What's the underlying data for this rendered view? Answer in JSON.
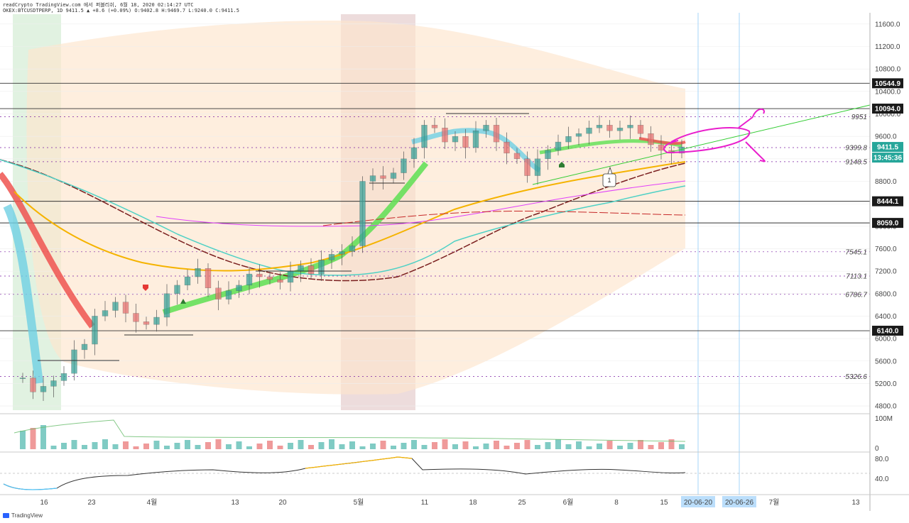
{
  "header": {
    "line1": "readCrypto TradingView.com 에서 퍼블리쉬, 6월 18, 2020 02:14:27 UTC",
    "line2": "OKEX:BTCUSDTPERP, 1D 9411.5 ▲ +8.6 (+0.09%) O:9402.8 H:9469.7 L:9240.0 C:9411.5"
  },
  "footer": {
    "brand": "TradingView"
  },
  "colors": {
    "up": "#3aa39a",
    "down": "#e57373",
    "price_tag": "#26a69a",
    "ribbon_green": "#66e05a",
    "ribbon_red": "#ef5350",
    "ribbon_blue": "#6fd0e3",
    "ma_orange": "#f5b300",
    "ma_cyan": "#4fd1c5",
    "ma_magenta": "#e040fb",
    "ma_maroon": "#7a1f1f",
    "trend_green": "#33cc33",
    "annotation_magenta": "#e91ecc",
    "band_fill": "#fde5cc",
    "shade_green": "#d9efd9",
    "shade_brown": "#e8d3d3"
  },
  "chart_data": [
    {
      "type": "candlestick",
      "symbol": "OKEX:BTCUSDTPERP",
      "interval": "1D",
      "last": 9411.5,
      "change": 8.6,
      "change_pct": "+0.09%",
      "ohlc_last": {
        "open": 9402.8,
        "high": 9469.7,
        "low": 9240.0,
        "close": 9411.5
      },
      "ylim": [
        4700,
        11800
      ],
      "y_ticks": [
        "11600.0",
        "11200.0",
        "10800.0",
        "10400.0",
        "10000.0",
        "9600.0",
        "9200.0",
        "8800.0",
        "8400.0",
        "8000.0",
        "7600.0",
        "7200.0",
        "6800.0",
        "6400.0",
        "6000.0",
        "5600.0",
        "5200.0",
        "4800.0"
      ],
      "x_ticks": [
        "16",
        "23",
        "4월",
        "13",
        "20",
        "5월",
        "11",
        "18",
        "25",
        "6월",
        "8",
        "15",
        "20-06-20",
        "20-06-26",
        "7월",
        "13"
      ],
      "x_highlight_ticks": [
        "20-06-20",
        "20-06-26"
      ],
      "horizontal_levels": [
        {
          "label": "10544.9",
          "value": 10544.9,
          "boxed": true
        },
        {
          "label": "10094.0",
          "value": 10094.0,
          "boxed": true
        },
        {
          "label": "8444.1",
          "value": 8444.1,
          "boxed": true
        },
        {
          "label": "8059.0",
          "value": 8059.0,
          "boxed": true
        },
        {
          "label": "6140.0",
          "value": 6140.0,
          "boxed": true
        }
      ],
      "dotted_levels": [
        {
          "label": "9951",
          "value": 9951
        },
        {
          "label": "9399.8",
          "value": 9399.8
        },
        {
          "label": "9148.5",
          "value": 9148.5
        },
        {
          "label": "7545.1",
          "value": 7545.1
        },
        {
          "label": "7113.1",
          "value": 7113.1
        },
        {
          "label": "6786.7",
          "value": 6786.7
        },
        {
          "label": "5326.6",
          "value": 5326.6
        }
      ],
      "price_tag": "9411.5",
      "countdown_tag": "13:45:36",
      "annotation_label": "1",
      "closes": [
        5300,
        5050,
        5150,
        5250,
        5380,
        5800,
        5900,
        6400,
        6500,
        6650,
        6450,
        6300,
        6250,
        6380,
        6800,
        6950,
        7100,
        7250,
        6900,
        6700,
        6850,
        6950,
        7150,
        7100,
        7050,
        7000,
        7200,
        7300,
        7150,
        7400,
        7500,
        7550,
        7650,
        8800,
        8900,
        8850,
        8950,
        9200,
        9400,
        9800,
        9750,
        9500,
        9600,
        9400,
        9700,
        9800,
        9500,
        9300,
        9200,
        8900,
        9200,
        9350,
        9500,
        9600,
        9650,
        9750,
        9800,
        9700,
        9750,
        9800,
        9650,
        9450,
        9350,
        9300,
        9411.5
      ]
    },
    {
      "type": "histogram",
      "name": "volume",
      "y_tick": "100M",
      "y_tick_zero": "0"
    },
    {
      "type": "line",
      "name": "oscillator",
      "y_ticks": [
        "80.0",
        "40.0"
      ]
    }
  ]
}
